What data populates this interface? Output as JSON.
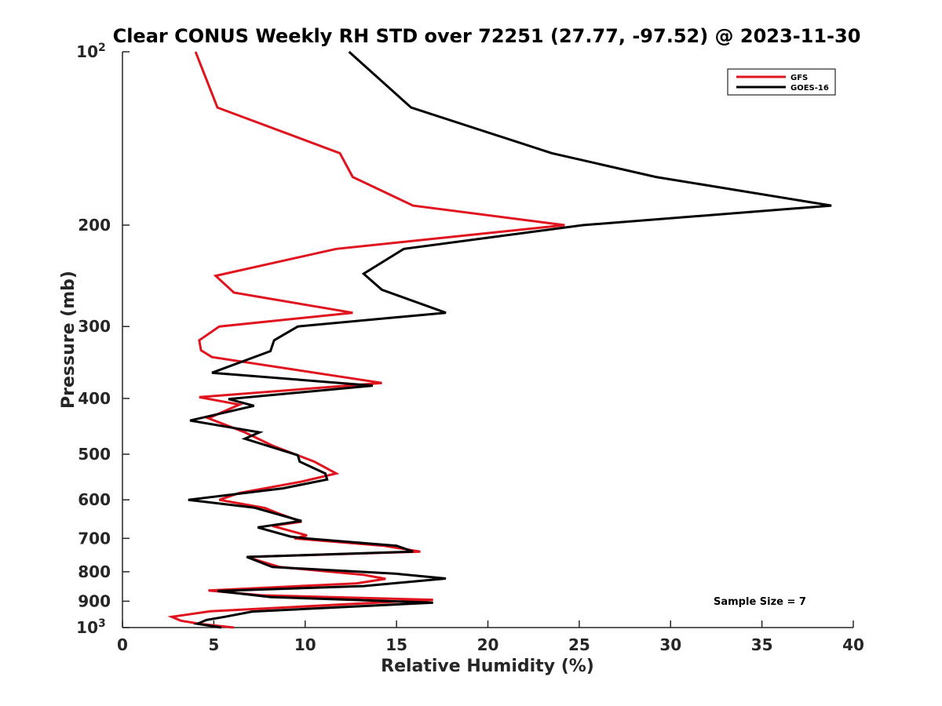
{
  "chart_data": {
    "type": "line",
    "title": "Clear CONUS Weekly RH STD over 72251 (27.77, -97.52) @ 2023-11-30",
    "xlabel": "Relative Humidity (%)",
    "ylabel": "Pressure (mb)",
    "xlim": [
      0,
      40
    ],
    "ylim": [
      100,
      1000
    ],
    "y_scale": "log",
    "y_reversed": true,
    "grid": false,
    "legend_position": "top-right",
    "x_ticks": [
      "0",
      "5",
      "10",
      "15",
      "20",
      "25",
      "30",
      "35",
      "40"
    ],
    "y_ticks": [
      {
        "value": 100,
        "base": "10",
        "exp": "2"
      },
      {
        "value": 200,
        "label": "200"
      },
      {
        "value": 300,
        "label": "300"
      },
      {
        "value": 400,
        "label": "400"
      },
      {
        "value": 500,
        "label": "500"
      },
      {
        "value": 600,
        "label": "600"
      },
      {
        "value": 700,
        "label": "700"
      },
      {
        "value": 800,
        "label": "800"
      },
      {
        "value": 900,
        "label": "900"
      },
      {
        "value": 1000,
        "base": "10",
        "exp": "3"
      }
    ],
    "annotation": "Sample Size = 7",
    "series": [
      {
        "name": "GFS",
        "color": "#e0141e",
        "points": [
          [
            4.0,
            100
          ],
          [
            5.2,
            125
          ],
          [
            11.9,
            150
          ],
          [
            12.6,
            165
          ],
          [
            15.9,
            185
          ],
          [
            24.2,
            200
          ],
          [
            11.7,
            220
          ],
          [
            5.1,
            245
          ],
          [
            6.1,
            262
          ],
          [
            12.6,
            284
          ],
          [
            5.3,
            300
          ],
          [
            4.2,
            317
          ],
          [
            4.3,
            330
          ],
          [
            4.9,
            339
          ],
          [
            14.2,
            376
          ],
          [
            4.2,
            398
          ],
          [
            6.4,
            410
          ],
          [
            4.7,
            433
          ],
          [
            6.7,
            458
          ],
          [
            8.2,
            483
          ],
          [
            10.5,
            515
          ],
          [
            11.7,
            540
          ],
          [
            9.8,
            558
          ],
          [
            6.4,
            584
          ],
          [
            5.3,
            600
          ],
          [
            7.8,
            620
          ],
          [
            8.5,
            633
          ],
          [
            9.8,
            655
          ],
          [
            8.2,
            666
          ],
          [
            10.1,
            692
          ],
          [
            9.4,
            700
          ],
          [
            14.3,
            721
          ],
          [
            16.3,
            738
          ],
          [
            6.8,
            754
          ],
          [
            8.6,
            785
          ],
          [
            13.2,
            810
          ],
          [
            14.4,
            823
          ],
          [
            12.8,
            838
          ],
          [
            4.7,
            862
          ],
          [
            7.6,
            879
          ],
          [
            17.0,
            895
          ],
          [
            4.8,
            937
          ],
          [
            2.7,
            958
          ],
          [
            3.2,
            973
          ],
          [
            4.4,
            987
          ],
          [
            6.1,
            1000
          ]
        ]
      },
      {
        "name": "GOES-16",
        "color": "#000000",
        "points": [
          [
            12.4,
            100
          ],
          [
            15.8,
            125
          ],
          [
            23.5,
            150
          ],
          [
            29.2,
            165
          ],
          [
            38.8,
            185
          ],
          [
            25.2,
            200
          ],
          [
            15.4,
            220
          ],
          [
            13.2,
            243
          ],
          [
            14.2,
            259
          ],
          [
            17.7,
            284
          ],
          [
            9.6,
            300
          ],
          [
            8.3,
            317
          ],
          [
            8.1,
            331
          ],
          [
            4.9,
            361
          ],
          [
            13.7,
            380
          ],
          [
            5.8,
            401
          ],
          [
            7.2,
            412
          ],
          [
            3.7,
            437
          ],
          [
            7.5,
            458
          ],
          [
            6.7,
            470
          ],
          [
            9.6,
            502
          ],
          [
            9.7,
            515
          ],
          [
            11.1,
            540
          ],
          [
            11.2,
            553
          ],
          [
            8.8,
            573
          ],
          [
            3.6,
            600
          ],
          [
            7.2,
            619
          ],
          [
            9.8,
            653
          ],
          [
            7.4,
            670
          ],
          [
            9.2,
            695
          ],
          [
            10.0,
            700
          ],
          [
            15.0,
            721
          ],
          [
            15.9,
            738
          ],
          [
            6.8,
            754
          ],
          [
            8.2,
            785
          ],
          [
            14.9,
            806
          ],
          [
            17.7,
            822
          ],
          [
            13.2,
            847
          ],
          [
            5.2,
            864
          ],
          [
            8.1,
            885
          ],
          [
            17.0,
            905
          ],
          [
            7.1,
            938
          ],
          [
            5.6,
            958
          ],
          [
            4.6,
            970
          ],
          [
            4.1,
            985
          ],
          [
            5.4,
            1000
          ]
        ]
      }
    ]
  }
}
